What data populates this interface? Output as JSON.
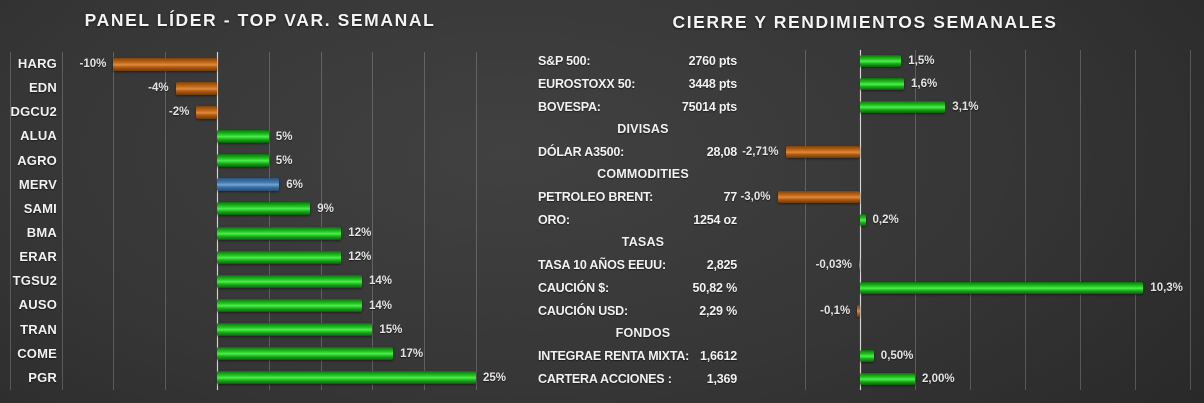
{
  "chart_data": [
    {
      "type": "bar",
      "orientation": "horizontal",
      "title": "PANEL LÍDER - TOP VAR. SEMANAL",
      "categories": [
        "HARG",
        "EDN",
        "DGCU2",
        "ALUA",
        "AGRO",
        "MERV",
        "SAMI",
        "BMA",
        "ERAR",
        "TGSU2",
        "AUSO",
        "TRAN",
        "COME",
        "PGR"
      ],
      "values": [
        -10,
        -4,
        -2,
        5,
        5,
        6,
        9,
        12,
        12,
        14,
        14,
        15,
        17,
        25
      ],
      "value_labels": [
        "-10%",
        "-4%",
        "-2%",
        "5%",
        "5%",
        "6%",
        "9%",
        "12%",
        "12%",
        "14%",
        "14%",
        "15%",
        "17%",
        "25%"
      ],
      "series_kind": [
        "neg",
        "neg",
        "neg",
        "pos",
        "pos",
        "idx",
        "pos",
        "pos",
        "pos",
        "pos",
        "pos",
        "pos",
        "pos",
        "pos"
      ],
      "xlabel": "",
      "ylabel": "",
      "xlim": [
        -20,
        25
      ],
      "grid_step_pct": 5,
      "grid": true,
      "legend": "none",
      "colors": {
        "positive": "#1fbe1f",
        "negative": "#c4661b",
        "index": "#4a7cb0"
      }
    },
    {
      "type": "bar",
      "orientation": "horizontal",
      "title": "CIERRE Y RENDIMIENTOS SEMANALES",
      "xlim": [
        -3.1,
        12.4
      ],
      "grid_step_pct": 2,
      "grid": true,
      "legend": "none",
      "colors": {
        "positive": "#1fbe1f",
        "negative": "#c4661b"
      },
      "rows": [
        {
          "kind": "item",
          "label": "S&P 500:",
          "value": "2760 pts",
          "pct": 1.5,
          "pct_label": "1,5%"
        },
        {
          "kind": "item",
          "label": "EUROSTOXX 50:",
          "value": "3448 pts",
          "pct": 1.6,
          "pct_label": "1,6%"
        },
        {
          "kind": "item",
          "label": "BOVESPA:",
          "value": "75014 pts",
          "pct": 3.1,
          "pct_label": "3,1%"
        },
        {
          "kind": "section",
          "label": "DIVISAS"
        },
        {
          "kind": "item",
          "label": "DÓLAR A3500:",
          "value": "28,08",
          "pct": -2.71,
          "pct_label": "-2,71%"
        },
        {
          "kind": "section",
          "label": "COMMODITIES"
        },
        {
          "kind": "item",
          "label": "PETROLEO BRENT:",
          "value": "77",
          "pct": -3.0,
          "pct_label": "-3,0%"
        },
        {
          "kind": "item",
          "label": "ORO:",
          "value": "1254 oz",
          "pct": 0.2,
          "pct_label": "0,2%"
        },
        {
          "kind": "section",
          "label": "TASAS"
        },
        {
          "kind": "item",
          "label": "TASA 10 AÑOS EEUU:",
          "value": "2,825",
          "pct": -0.03,
          "pct_label": "-0,03%"
        },
        {
          "kind": "item",
          "label": "CAUCIÓN $:",
          "value": "50,82 %",
          "pct": 10.3,
          "pct_label": "10,3%"
        },
        {
          "kind": "item",
          "label": "CAUCIÓN USD:",
          "value": "2,29 %",
          "pct": -0.1,
          "pct_label": "-0,1%"
        },
        {
          "kind": "section",
          "label": "FONDOS"
        },
        {
          "kind": "item",
          "label": "INTEGRAE RENTA MIXTA:",
          "value": "1,6612",
          "pct": 0.5,
          "pct_label": "0,50%"
        },
        {
          "kind": "item",
          "label": "CARTERA ACCIONES :",
          "value": "1,369",
          "pct": 2.0,
          "pct_label": "2,00%"
        }
      ]
    }
  ]
}
